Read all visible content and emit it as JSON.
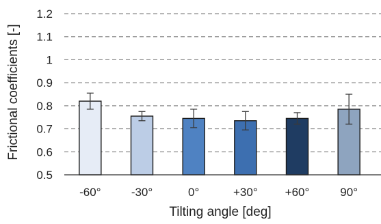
{
  "chart_data": {
    "type": "bar",
    "categories": [
      "-60°",
      "-30°",
      "0°",
      "+30°",
      "+60°",
      "90°"
    ],
    "values": [
      0.82,
      0.755,
      0.745,
      0.735,
      0.745,
      0.785
    ],
    "errors": [
      0.035,
      0.02,
      0.04,
      0.04,
      0.025,
      0.065
    ],
    "bar_colors": [
      "#e6ecf6",
      "#bccde6",
      "#4f82c2",
      "#3d6fb0",
      "#1f3c62",
      "#8ea4bf"
    ],
    "xlabel": "Tilting angle [deg]",
    "ylabel": "Frictional coefficients [-]",
    "ylim": [
      0.5,
      1.2
    ],
    "yticks": [
      "0.5",
      "0.6",
      "0.7",
      "0.8",
      "0.9",
      "1",
      "1.1",
      "1.2"
    ],
    "grid": "horizontal dashed",
    "legend": "none"
  }
}
